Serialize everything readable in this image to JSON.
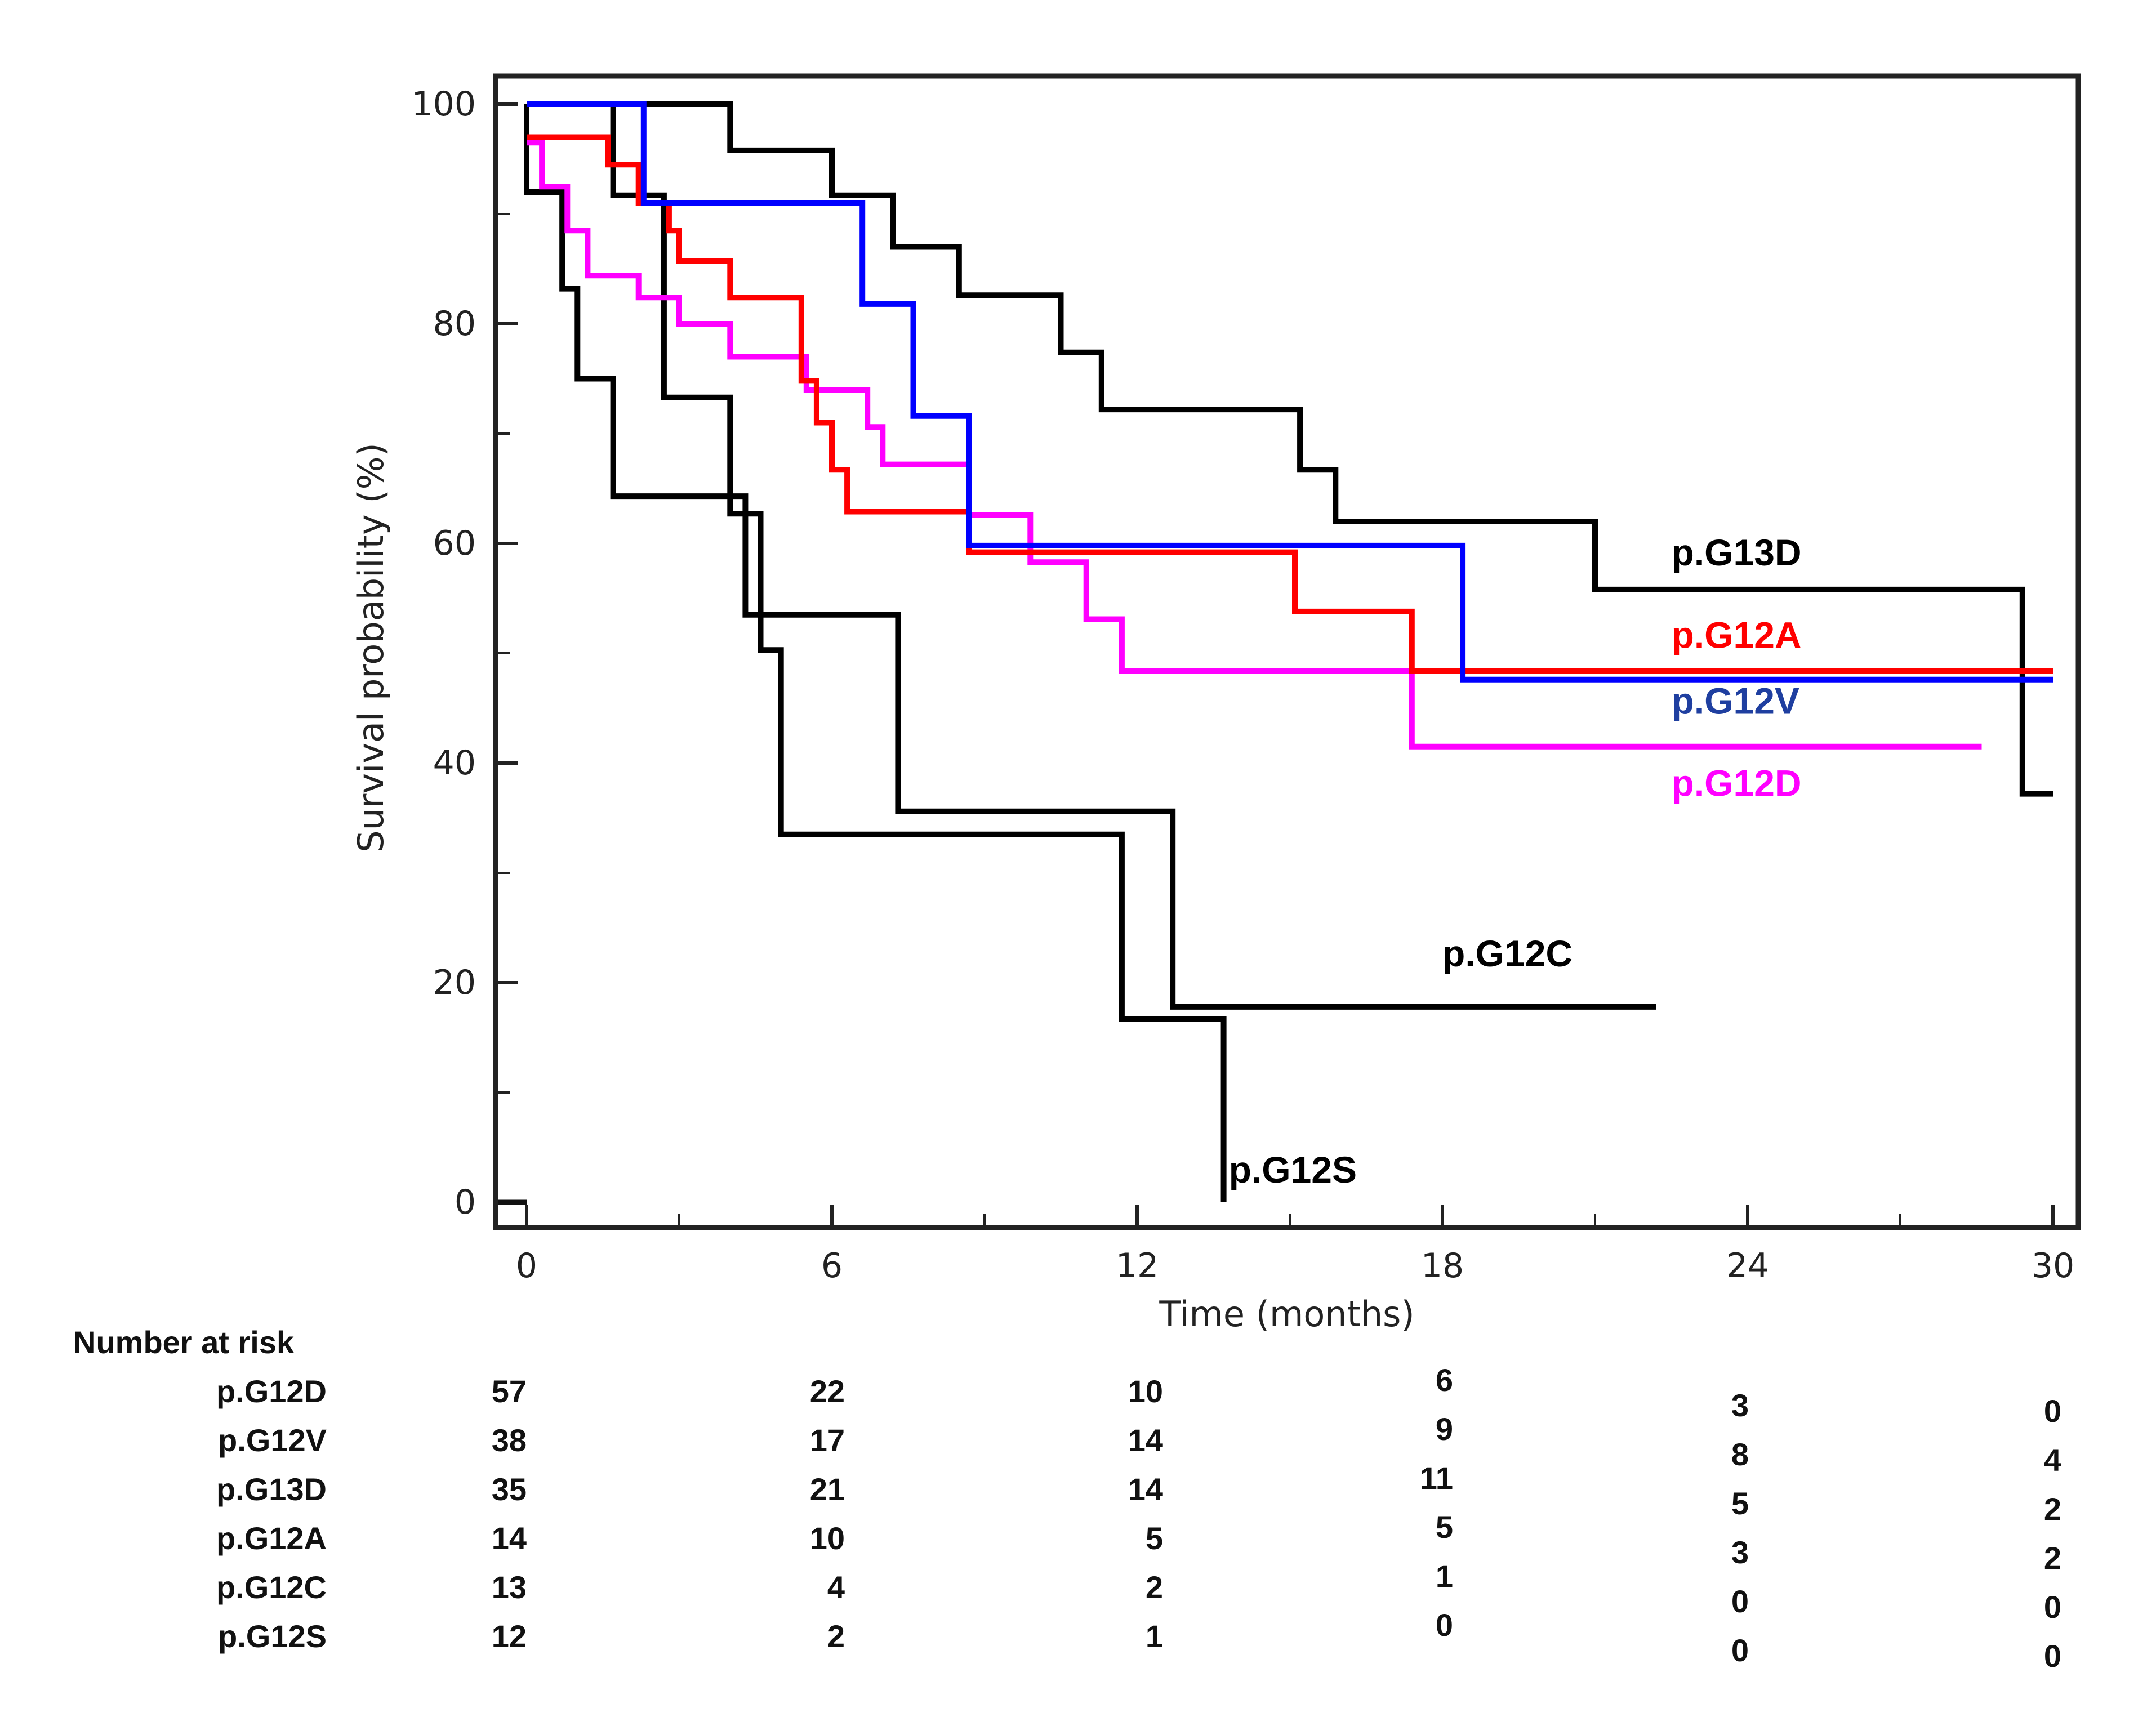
{
  "chart_data": {
    "type": "line",
    "subtype": "kaplan-meier",
    "title": "",
    "xlabel": "Time (months)",
    "ylabel": "Survival probability (%)",
    "xlim": [
      0,
      30
    ],
    "ylim": [
      0,
      100
    ],
    "xticks": [
      0,
      6,
      12,
      18,
      24,
      30
    ],
    "yticks": [
      0,
      20,
      40,
      60,
      80,
      100
    ],
    "grid": false,
    "legend": "inline-right",
    "series": [
      {
        "name": "p.G13D",
        "color": "#000000",
        "label_x": 22.5,
        "label_y": 58,
        "steps": [
          [
            0,
            100
          ],
          [
            4,
            100
          ],
          [
            4,
            95.8
          ],
          [
            6,
            95.8
          ],
          [
            6,
            91.7
          ],
          [
            7.2,
            91.7
          ],
          [
            7.2,
            87
          ],
          [
            8.5,
            87
          ],
          [
            8.5,
            82.6
          ],
          [
            10.5,
            82.6
          ],
          [
            10.5,
            77.4
          ],
          [
            11.3,
            77.4
          ],
          [
            11.3,
            72.2
          ],
          [
            15.2,
            72.2
          ],
          [
            15.2,
            66.7
          ],
          [
            15.9,
            66.7
          ],
          [
            15.9,
            62
          ],
          [
            21,
            62
          ],
          [
            21,
            55.8
          ],
          [
            29.4,
            55.8
          ],
          [
            29.4,
            37.2
          ],
          [
            30,
            37.2
          ]
        ]
      },
      {
        "name": "p.G12A",
        "color": "#ff0000",
        "label_x": 22.5,
        "label_y": 50.5,
        "steps": [
          [
            0,
            97
          ],
          [
            1.6,
            97
          ],
          [
            1.6,
            94.5
          ],
          [
            2.2,
            94.5
          ],
          [
            2.2,
            91
          ],
          [
            2.8,
            91
          ],
          [
            2.8,
            88.5
          ],
          [
            3,
            88.5
          ],
          [
            3,
            85.7
          ],
          [
            4,
            85.7
          ],
          [
            4,
            82.4
          ],
          [
            5.4,
            82.4
          ],
          [
            5.4,
            74.8
          ],
          [
            5.7,
            74.8
          ],
          [
            5.7,
            71
          ],
          [
            6,
            71
          ],
          [
            6,
            66.7
          ],
          [
            6.3,
            66.7
          ],
          [
            6.3,
            62.9
          ],
          [
            8.7,
            62.9
          ],
          [
            8.7,
            59.2
          ],
          [
            15.1,
            59.2
          ],
          [
            15.1,
            53.8
          ],
          [
            17.4,
            53.8
          ],
          [
            17.4,
            48.4
          ],
          [
            30,
            48.4
          ]
        ]
      },
      {
        "name": "p.G12V",
        "color": "#0000ff",
        "label_x": 22.5,
        "label_y": 44.5,
        "steps": [
          [
            0,
            100
          ],
          [
            2.3,
            100
          ],
          [
            2.3,
            91
          ],
          [
            6.6,
            91
          ],
          [
            6.6,
            81.8
          ],
          [
            7.6,
            81.8
          ],
          [
            7.6,
            71.6
          ],
          [
            8.7,
            71.6
          ],
          [
            8.7,
            59.8
          ],
          [
            18.4,
            59.8
          ],
          [
            18.4,
            47.6
          ],
          [
            30,
            47.6
          ]
        ]
      },
      {
        "name": "p.G12D",
        "color": "#ff00ff",
        "label_x": 22.5,
        "label_y": 37,
        "steps": [
          [
            0,
            96.5
          ],
          [
            0.3,
            96.5
          ],
          [
            0.3,
            92.5
          ],
          [
            0.8,
            92.5
          ],
          [
            0.8,
            88.5
          ],
          [
            1.2,
            88.5
          ],
          [
            1.2,
            84.4
          ],
          [
            2.2,
            84.4
          ],
          [
            2.2,
            82.4
          ],
          [
            3,
            82.4
          ],
          [
            3,
            80
          ],
          [
            4,
            80
          ],
          [
            4,
            77
          ],
          [
            5.5,
            77
          ],
          [
            5.5,
            74
          ],
          [
            6.7,
            74
          ],
          [
            6.7,
            70.6
          ],
          [
            7,
            70.6
          ],
          [
            7,
            67.2
          ],
          [
            8.7,
            67.2
          ],
          [
            8.7,
            62.6
          ],
          [
            9.9,
            62.6
          ],
          [
            9.9,
            58.3
          ],
          [
            11,
            58.3
          ],
          [
            11,
            53.1
          ],
          [
            11.7,
            53.1
          ],
          [
            11.7,
            48.4
          ],
          [
            17.4,
            48.4
          ],
          [
            17.4,
            41.5
          ],
          [
            28.6,
            41.5
          ]
        ]
      },
      {
        "name": "p.G12C",
        "color": "#000000",
        "label_x": 18,
        "label_y": 21.5,
        "steps": [
          [
            0,
            100
          ],
          [
            0,
            92
          ],
          [
            0.7,
            92
          ],
          [
            0.7,
            83.2
          ],
          [
            1,
            83.2
          ],
          [
            1,
            75
          ],
          [
            1.7,
            75
          ],
          [
            1.7,
            64.3
          ],
          [
            4.3,
            64.3
          ],
          [
            4.3,
            53.5
          ],
          [
            7.3,
            53.5
          ],
          [
            7.3,
            35.6
          ],
          [
            12.7,
            35.6
          ],
          [
            12.7,
            17.8
          ],
          [
            22.2,
            17.8
          ]
        ]
      },
      {
        "name": "p.G12S",
        "color": "#000000",
        "label_x": 13.8,
        "label_y": 1.8,
        "steps": [
          [
            0,
            100
          ],
          [
            1.7,
            100
          ],
          [
            1.7,
            91.7
          ],
          [
            2.7,
            91.7
          ],
          [
            2.7,
            73.3
          ],
          [
            4,
            73.3
          ],
          [
            4,
            62.7
          ],
          [
            4.6,
            62.7
          ],
          [
            4.6,
            50.3
          ],
          [
            5,
            50.3
          ],
          [
            5,
            33.5
          ],
          [
            11.7,
            33.5
          ],
          [
            11.7,
            16.7
          ],
          [
            13.7,
            16.7
          ],
          [
            13.7,
            0
          ]
        ]
      }
    ],
    "censor_tail": [
      [
        0,
        0
      ],
      [
        -0.3,
        0
      ]
    ]
  },
  "risk_table": {
    "title": "Number at risk",
    "times": [
      0,
      6,
      12,
      18,
      24,
      30
    ],
    "rows": [
      {
        "name": "p.G12D",
        "counts": [
          "57",
          "22",
          "10",
          "6",
          "3",
          "0"
        ]
      },
      {
        "name": "p.G12V",
        "counts": [
          "38",
          "17",
          "14",
          "9",
          "8",
          "4"
        ]
      },
      {
        "name": "p.G13D",
        "counts": [
          "35",
          "21",
          "14",
          "11",
          "5",
          "2"
        ]
      },
      {
        "name": "p.G12A",
        "counts": [
          "14",
          "10",
          "5",
          "5",
          "3",
          "2"
        ]
      },
      {
        "name": "p.G12C",
        "counts": [
          "13",
          "4",
          "2",
          "1",
          "0",
          "0"
        ]
      },
      {
        "name": "p.G12S",
        "counts": [
          "12",
          "2",
          "1",
          "0",
          "0",
          "0"
        ]
      }
    ]
  }
}
